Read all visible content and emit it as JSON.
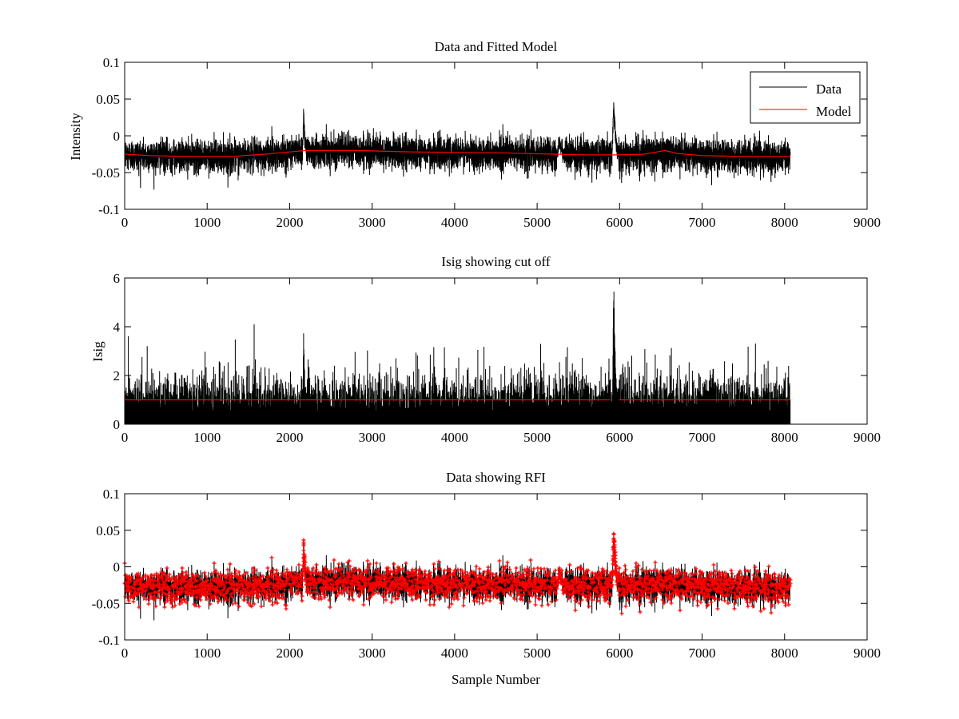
{
  "figure": {
    "background": "#ffffff",
    "colors": {
      "data": "#000000",
      "model": "#ff0000",
      "rfi": "#ff0000"
    }
  },
  "chart_data": [
    {
      "type": "line",
      "title": "Data and Fitted Model",
      "xlabel": "",
      "ylabel": "Intensity",
      "xlim": [
        0,
        9000
      ],
      "ylim": [
        -0.1,
        0.1
      ],
      "xticks": [
        0,
        1000,
        2000,
        3000,
        4000,
        5000,
        6000,
        7000,
        8000,
        9000
      ],
      "yticks": [
        -0.1,
        -0.05,
        0,
        0.05,
        0.1
      ],
      "ytick_labels": [
        "-0.1",
        "-0.05",
        "0",
        "0.05",
        "0.1"
      ],
      "grid": false,
      "legend": {
        "placement": "top-right",
        "entries": [
          "Data",
          "Model"
        ]
      },
      "n_samples": 8070,
      "series": [
        {
          "name": "Data",
          "color": "#000000",
          "style": "noisy-line",
          "baseline": {
            "x": [
              0,
              300,
              800,
              1300,
              1700,
              2000,
              2200,
              2800,
              3500,
              4500,
              5200,
              5600,
              5950,
              6300,
              6600,
              7000,
              7500,
              8070
            ],
            "y": [
              -0.026,
              -0.027,
              -0.028,
              -0.028,
              -0.026,
              -0.022,
              -0.019,
              -0.02,
              -0.023,
              -0.024,
              -0.025,
              -0.026,
              -0.027,
              -0.025,
              -0.022,
              -0.027,
              -0.029,
              -0.029
            ]
          },
          "noise_sigma": 0.011,
          "spikes": [
            {
              "x": 2170,
              "width": 30,
              "peak": 0.03
            },
            {
              "x": 5270,
              "width": 60,
              "peak": -0.01
            },
            {
              "x": 5930,
              "width": 55,
              "peak": 0.043
            }
          ]
        },
        {
          "name": "Model",
          "color": "#ff0000",
          "style": "line",
          "x": [
            0,
            300,
            800,
            1300,
            1700,
            2000,
            2200,
            2800,
            3500,
            4500,
            5200,
            5600,
            5950,
            6300,
            6550,
            6700,
            7000,
            7500,
            8070
          ],
          "y": [
            -0.025,
            -0.027,
            -0.028,
            -0.028,
            -0.025,
            -0.022,
            -0.02,
            -0.02,
            -0.022,
            -0.023,
            -0.025,
            -0.026,
            -0.026,
            -0.025,
            -0.02,
            -0.024,
            -0.027,
            -0.028,
            -0.028
          ]
        }
      ]
    },
    {
      "type": "line",
      "title": "Isig showing cut off",
      "xlabel": "",
      "ylabel": "Isig",
      "xlim": [
        0,
        9000
      ],
      "ylim": [
        0,
        6
      ],
      "xticks": [
        0,
        1000,
        2000,
        3000,
        4000,
        5000,
        6000,
        7000,
        8000,
        9000
      ],
      "yticks": [
        0,
        2,
        4,
        6
      ],
      "ytick_labels": [
        "0",
        "2",
        "4",
        "6"
      ],
      "grid": false,
      "n_samples": 8070,
      "series": [
        {
          "color": "#000000",
          "style": "noisy-abs",
          "noise_sigma": 0.85,
          "spikes": [
            {
              "x": 2170,
              "width": 30,
              "peak": 4.2
            },
            {
              "x": 5930,
              "width": 55,
              "peak": 5.85
            }
          ]
        },
        {
          "color": "#ff0000",
          "style": "cutoff-line",
          "y": 1.0,
          "x": [
            0,
            8070
          ],
          "gap": [
            5880,
            5990
          ]
        }
      ]
    },
    {
      "type": "scatter",
      "title": "Data showing RFI",
      "xlabel": "Sample Number",
      "ylabel": "",
      "xlim": [
        0,
        9000
      ],
      "ylim": [
        -0.1,
        0.1
      ],
      "xticks": [
        0,
        1000,
        2000,
        3000,
        4000,
        5000,
        6000,
        7000,
        8000,
        9000
      ],
      "yticks": [
        -0.1,
        -0.05,
        0,
        0.05,
        0.1
      ],
      "ytick_labels": [
        "-0.1",
        "-0.05",
        "0",
        "0.05",
        "0.1"
      ],
      "grid": false,
      "n_samples": 8070,
      "series": [
        {
          "color": "#000000",
          "style": "noisy-line",
          "copy_of": "Data"
        },
        {
          "color": "#ff0000",
          "style": "markers",
          "marker": "plus",
          "source": "points above cut off"
        }
      ]
    }
  ]
}
